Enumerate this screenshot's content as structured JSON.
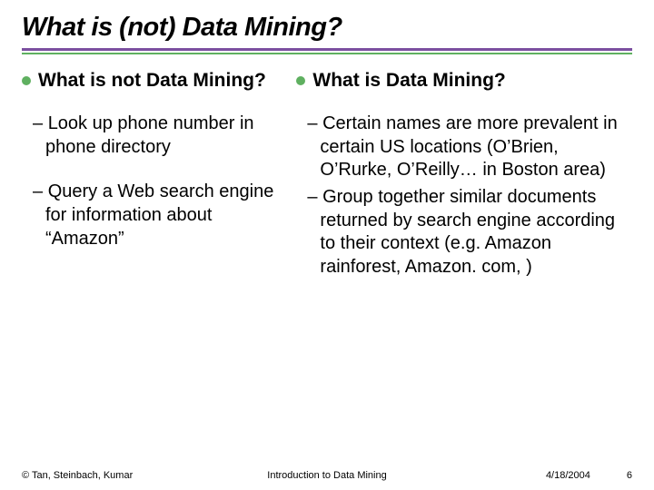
{
  "title": "What is (not) Data Mining?",
  "rule_colors": {
    "top": "#7b4fa0",
    "bottom": "#5fb060"
  },
  "bullet_color": "#5fb060",
  "left": {
    "heading": "What is not Data Mining?",
    "items": [
      "Look up phone number in phone directory",
      "Query a Web search engine for information about “Amazon”"
    ]
  },
  "right": {
    "heading": "What is Data Mining?",
    "items": [
      "Certain names are more prevalent in certain US locations (O’Brien, O’Rurke, O’Reilly… in Boston area)",
      "Group together similar documents returned by search engine according to their context (e.g. Amazon rainforest, Amazon. com, )"
    ]
  },
  "footer": {
    "left": "© Tan, Steinbach, Kumar",
    "center": "Introduction to Data Mining",
    "date": "4/18/2004",
    "page": "6"
  },
  "fonts": {
    "title_size": 29,
    "heading_size": 21,
    "body_size": 20,
    "footer_size": 11
  }
}
